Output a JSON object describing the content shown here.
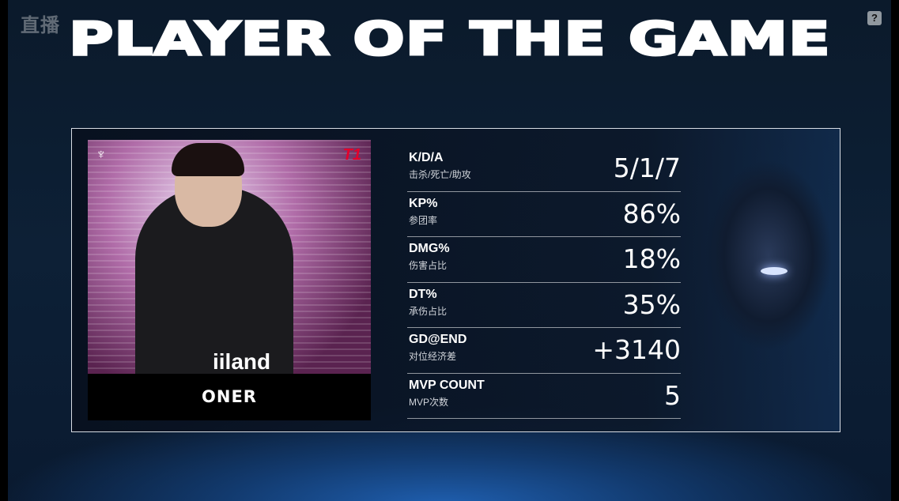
{
  "watermark": "直播",
  "help_icon": "?",
  "title": "PLAYER OF THE GAME",
  "player": {
    "name": "ONER",
    "jersey_text": "iiland",
    "team_logo": "T1"
  },
  "stats": [
    {
      "label": "K/D/A",
      "sub": "击杀/死亡/助攻",
      "value": "5/1/7"
    },
    {
      "label": "KP%",
      "sub": "参团率",
      "value": "86%"
    },
    {
      "label": "DMG%",
      "sub": "伤害占比",
      "value": "18%"
    },
    {
      "label": "DT%",
      "sub": "承伤占比",
      "value": "35%"
    },
    {
      "label": "GD@END",
      "sub": "对位经济差",
      "value": "+3140"
    },
    {
      "label": "MVP COUNT",
      "sub": "MVP次数",
      "value": "5"
    }
  ]
}
